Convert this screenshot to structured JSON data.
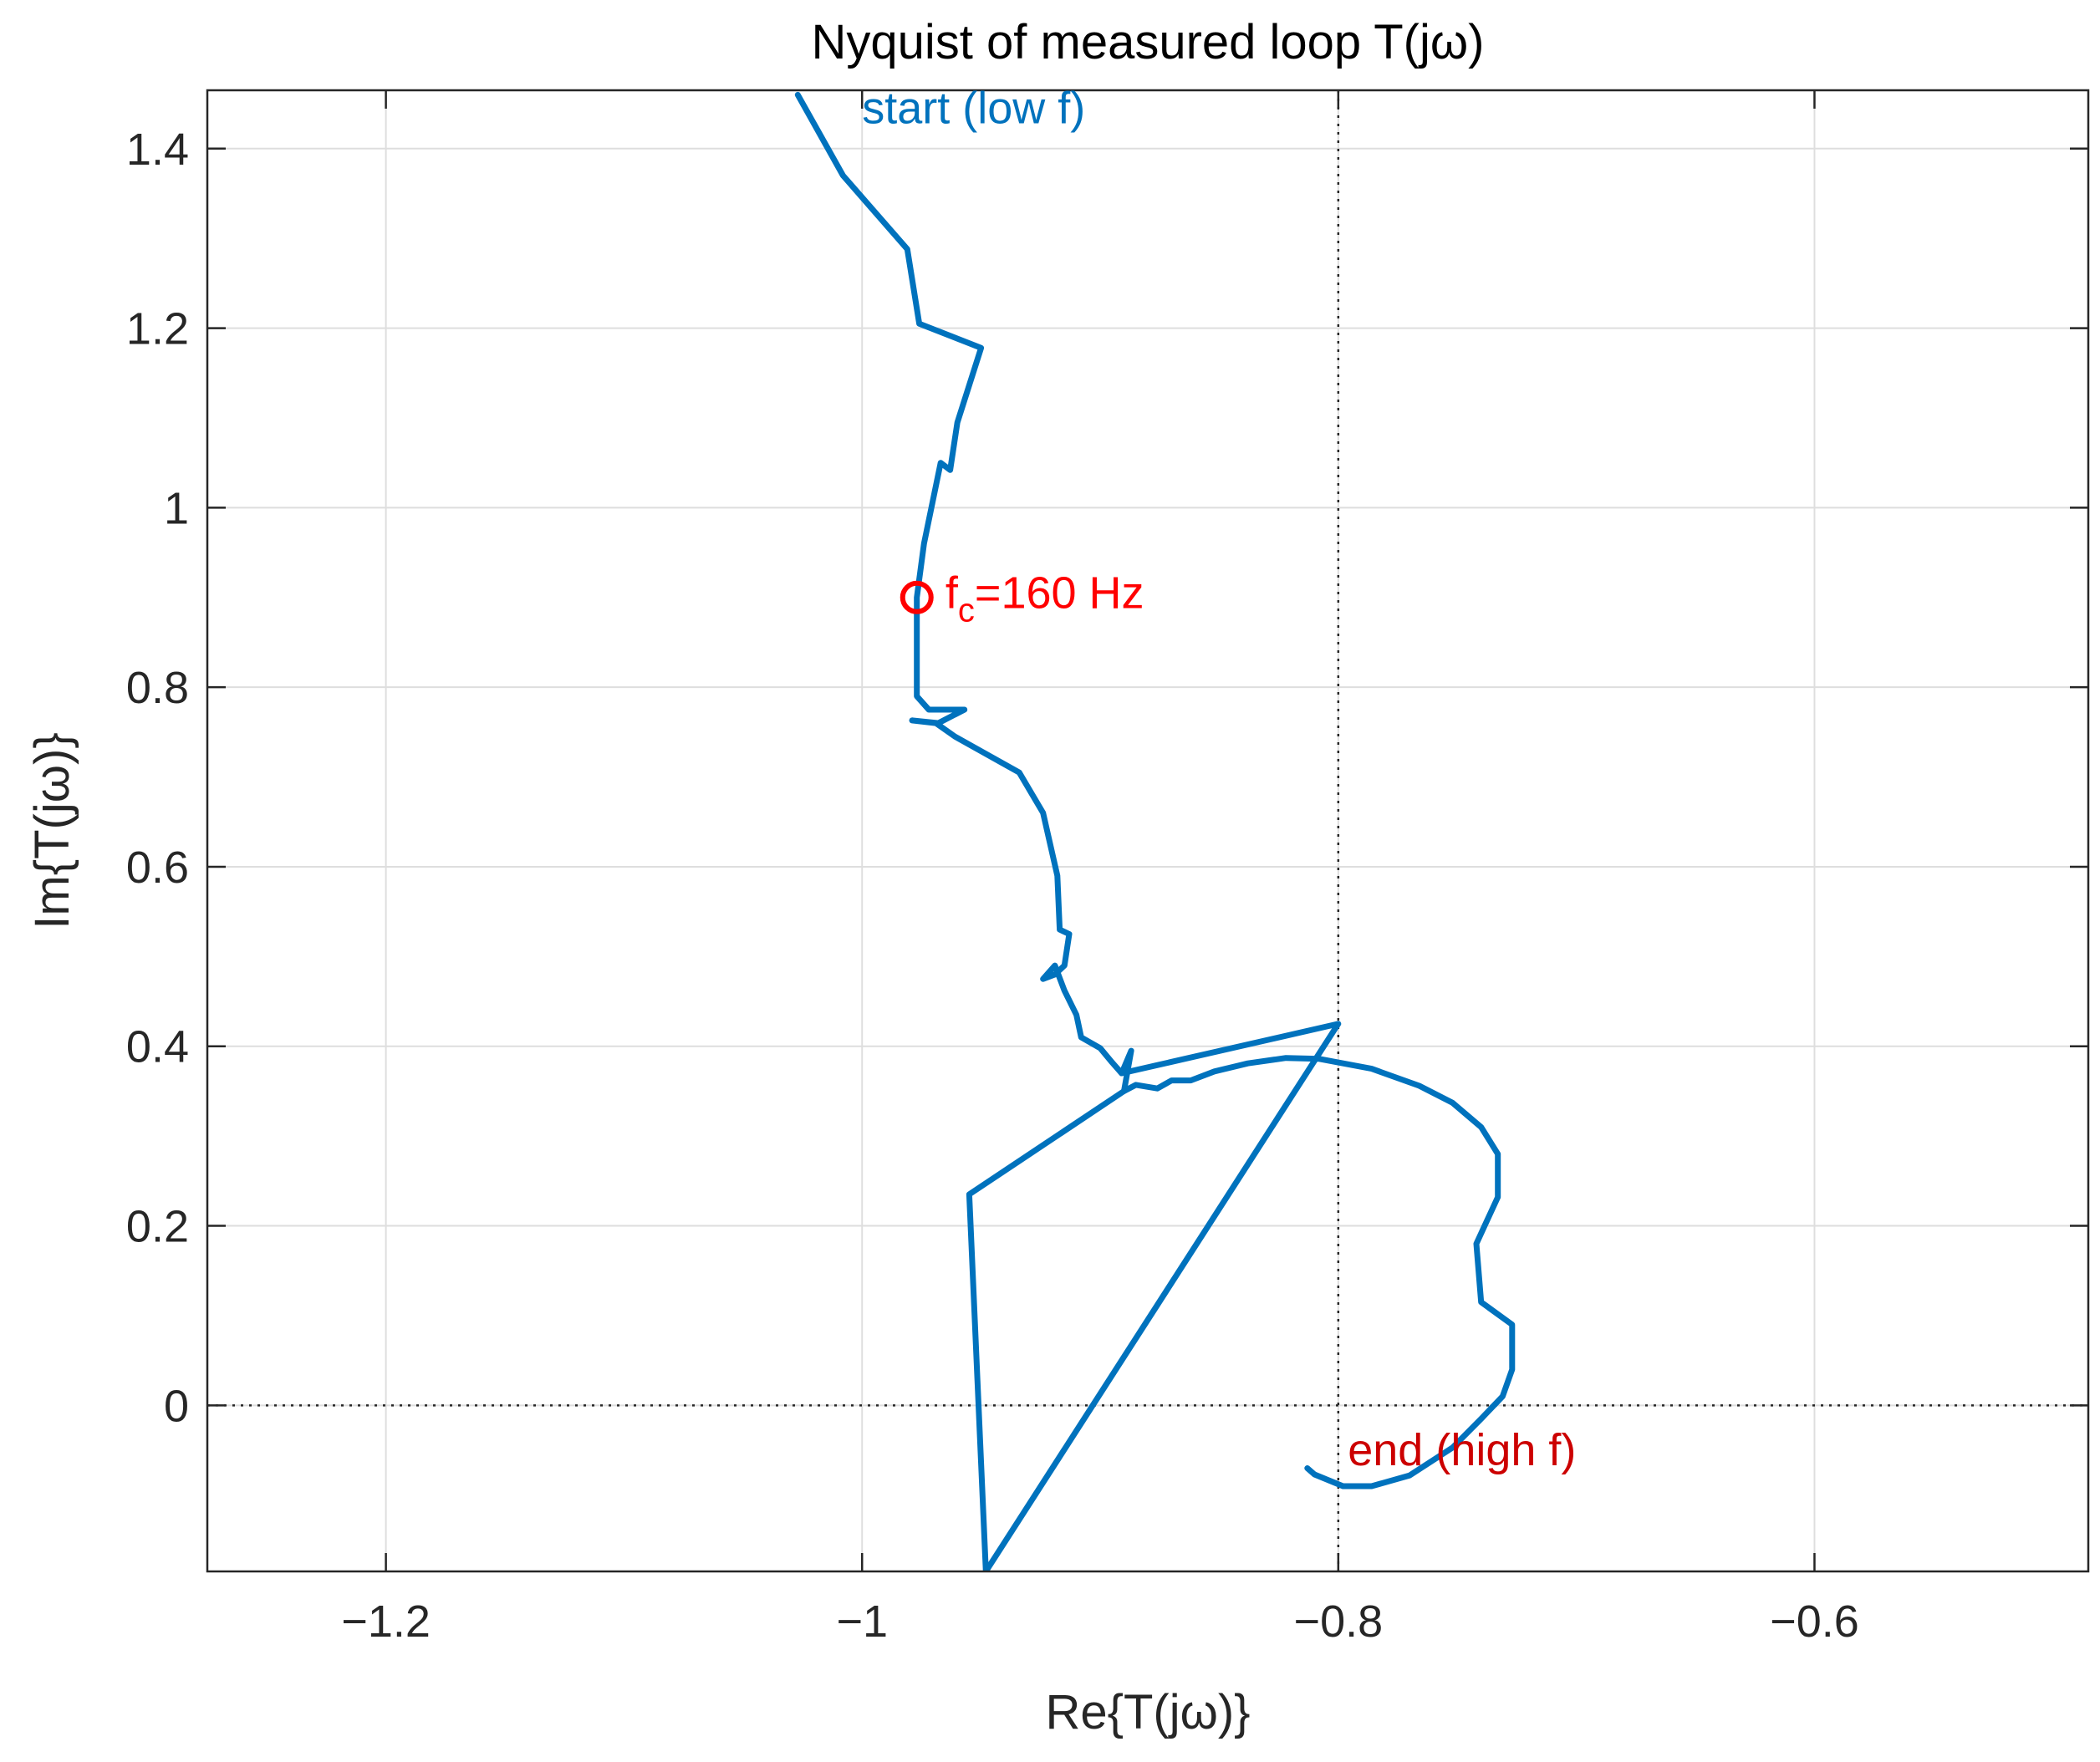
{
  "chart_data": {
    "type": "line",
    "title": "Nyquist of measured loop T(jω)",
    "xlabel": "Re{T(jω)}",
    "ylabel": "Im{T(jω)}",
    "xlim": [
      -1.275,
      -0.485
    ],
    "ylim": [
      -0.185,
      1.465
    ],
    "x_ticks": [
      -1.2,
      -1.0,
      -0.8,
      -0.6
    ],
    "x_tick_labels": [
      "−1.2",
      "−1",
      "−0.8",
      "−0.6"
    ],
    "y_ticks": [
      0,
      0.2,
      0.4,
      0.6,
      0.8,
      1.0,
      1.2,
      1.4
    ],
    "y_tick_labels": [
      "0",
      "0.2",
      "0.4",
      "0.6",
      "0.8",
      "1",
      "1.2",
      "1.4"
    ],
    "grid": true,
    "reference_lines": [
      {
        "orientation": "vertical",
        "x": -0.8,
        "style": "dotted"
      },
      {
        "orientation": "horizontal",
        "y": 0,
        "style": "dotted"
      }
    ],
    "series": [
      {
        "color": "#0072BD",
        "points": [
          [
            -1.027,
            1.46
          ],
          [
            -1.008,
            1.37
          ],
          [
            -0.981,
            1.288
          ],
          [
            -0.976,
            1.205
          ],
          [
            -0.95,
            1.178
          ],
          [
            -0.96,
            1.095
          ],
          [
            -0.963,
            1.042
          ],
          [
            -0.967,
            1.05
          ],
          [
            -0.974,
            0.96
          ],
          [
            -0.977,
            0.9
          ],
          [
            -0.977,
            0.79
          ],
          [
            -0.972,
            0.775
          ],
          [
            -0.957,
            0.775
          ],
          [
            -0.968,
            0.76
          ],
          [
            -0.979,
            0.763
          ],
          [
            -0.969,
            0.76
          ],
          [
            -0.961,
            0.745
          ],
          [
            -0.934,
            0.705
          ],
          [
            -0.924,
            0.66
          ],
          [
            -0.918,
            0.59
          ],
          [
            -0.917,
            0.53
          ],
          [
            -0.913,
            0.525
          ],
          [
            -0.915,
            0.49
          ],
          [
            -0.919,
            0.48
          ],
          [
            -0.924,
            0.475
          ],
          [
            -0.919,
            0.49
          ],
          [
            -0.915,
            0.462
          ],
          [
            -0.91,
            0.435
          ],
          [
            -0.908,
            0.41
          ],
          [
            -0.9,
            0.398
          ],
          [
            -0.895,
            0.382
          ],
          [
            -0.891,
            0.37
          ],
          [
            -0.887,
            0.395
          ],
          [
            -0.89,
            0.35
          ],
          [
            -0.885,
            0.357
          ],
          [
            -0.876,
            0.353
          ],
          [
            -0.87,
            0.362
          ],
          [
            -0.862,
            0.362
          ],
          [
            -0.852,
            0.372
          ],
          [
            -0.838,
            0.381
          ],
          [
            -0.822,
            0.387
          ],
          [
            -0.808,
            0.386
          ],
          [
            -0.786,
            0.375
          ],
          [
            -0.766,
            0.356
          ],
          [
            -0.752,
            0.337
          ],
          [
            -0.74,
            0.31
          ],
          [
            -0.733,
            0.28
          ],
          [
            -0.733,
            0.232
          ],
          [
            -0.742,
            0.18
          ],
          [
            -0.74,
            0.115
          ],
          [
            -0.727,
            0.09
          ],
          [
            -0.727,
            0.04
          ],
          [
            -0.731,
            0.01
          ],
          [
            -0.74,
            -0.015
          ],
          [
            -0.752,
            -0.047
          ],
          [
            -0.77,
            -0.078
          ],
          [
            -0.786,
            -0.09
          ],
          [
            -0.798,
            -0.09
          ],
          [
            -0.81,
            -0.077
          ],
          [
            -0.813,
            -0.07
          ]
        ]
      },
      {
        "color": "#0072BD",
        "points": [
          [
            -0.891,
            0.37
          ],
          [
            -0.8,
            0.425
          ],
          [
            -0.948,
            -0.185
          ],
          [
            -0.955,
            0.235
          ],
          [
            -0.89,
            0.35
          ]
        ]
      }
    ],
    "marker": {
      "x": -0.977,
      "y": 0.9,
      "color": "#FF0000",
      "shape": "circle"
    },
    "annotations": [
      {
        "text": "start (low f)",
        "x": -1.0,
        "y": 1.445,
        "color": "#0072BD"
      },
      {
        "base": "f",
        "subscript": "c",
        "suffix": "=160 Hz",
        "x": -0.965,
        "y": 0.905,
        "color": "#FF0000"
      },
      {
        "text": "end (high f)",
        "x": -0.796,
        "y": -0.05,
        "color": "#CC0000"
      }
    ]
  }
}
